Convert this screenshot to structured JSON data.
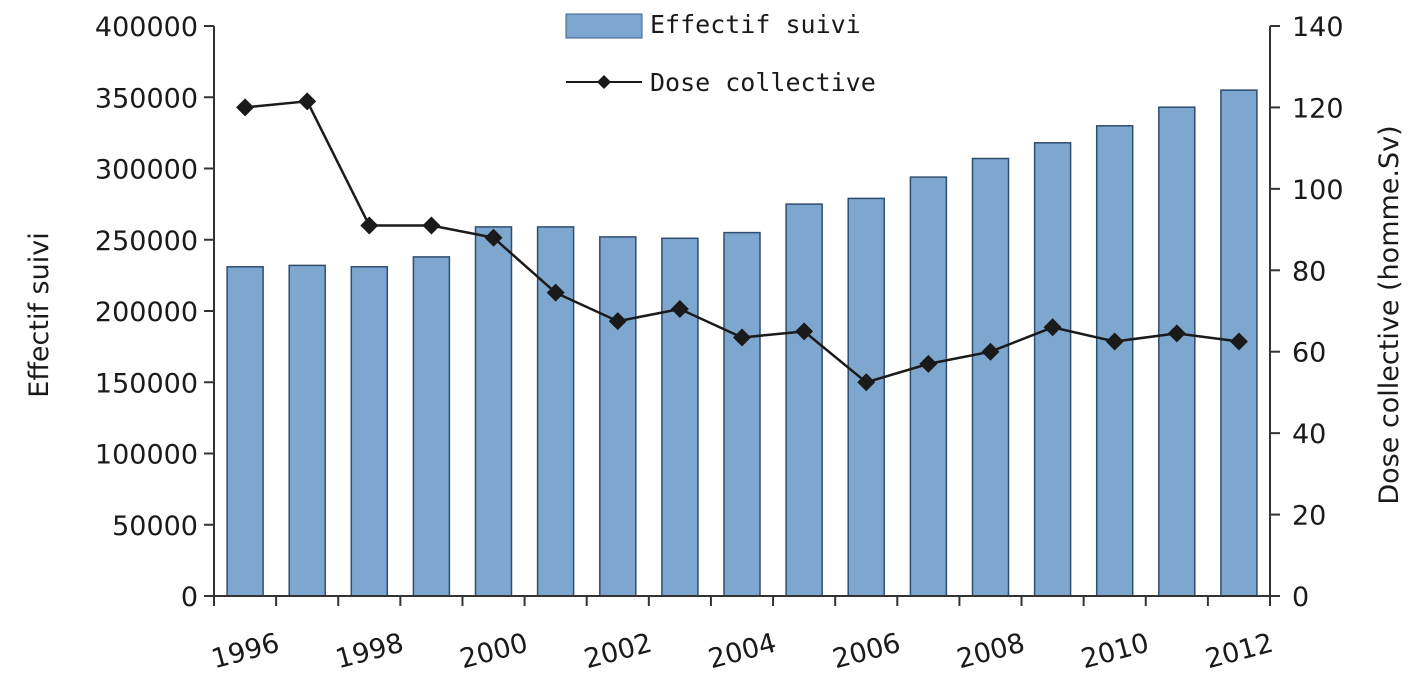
{
  "chart_data": {
    "type": "bar",
    "x": [
      1996,
      1997,
      1998,
      1999,
      2000,
      2001,
      2002,
      2003,
      2004,
      2005,
      2006,
      2007,
      2008,
      2009,
      2010,
      2011,
      2012
    ],
    "x_tick_labels": [
      "1996",
      "1998",
      "2000",
      "2002",
      "2004",
      "2006",
      "2008",
      "2010",
      "2012"
    ],
    "series": [
      {
        "name": "Effectif suivi",
        "type": "bar",
        "axis": "left",
        "color": "#7ea7cf",
        "values": [
          231000,
          232000,
          231000,
          238000,
          259000,
          259000,
          252000,
          251000,
          255000,
          275000,
          279000,
          294000,
          307000,
          318000,
          330000,
          343000,
          355000
        ]
      },
      {
        "name": "Dose collective",
        "type": "line",
        "axis": "right",
        "color": "#1a1a1a",
        "marker": "diamond",
        "values": [
          120,
          121.5,
          91,
          91,
          88,
          74.5,
          67.5,
          70.5,
          63.5,
          65,
          52.5,
          57,
          60,
          66,
          62.5,
          64.5,
          62.5
        ]
      }
    ],
    "ylabel": "Effectif suivi",
    "ylim": [
      0,
      400000
    ],
    "y_ticks": [
      "0",
      "50000",
      "100000",
      "150000",
      "200000",
      "250000",
      "300000",
      "350000",
      "400000"
    ],
    "y2label": "Dose collective  (homme.Sv)",
    "y2lim": [
      0,
      140
    ],
    "y2_ticks": [
      "0",
      "20",
      "40",
      "60",
      "80",
      "100",
      "120",
      "140"
    ],
    "legend_placement": "top-center",
    "grid": false
  }
}
